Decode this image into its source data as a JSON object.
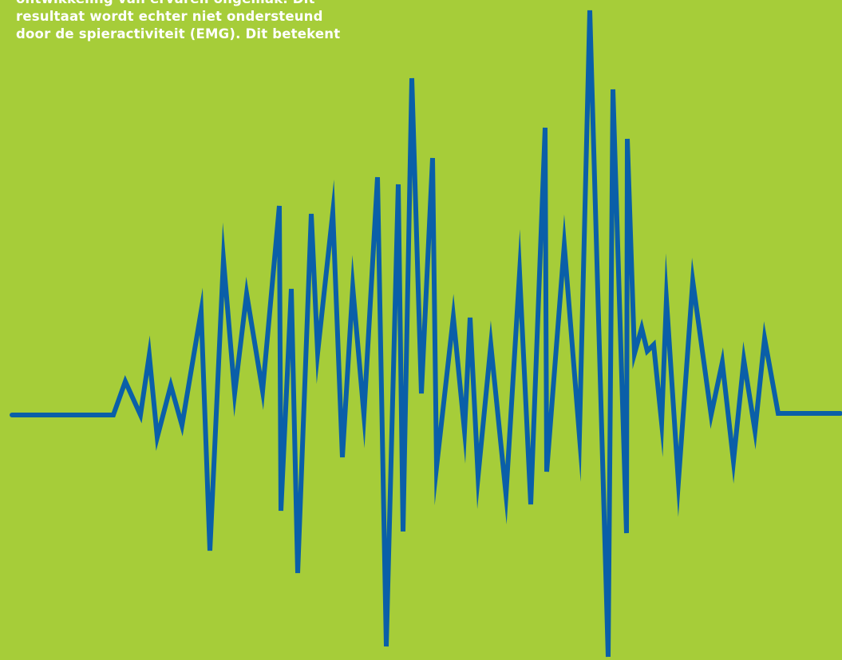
{
  "background_color": "#a6cd39",
  "wave_color": "#0a5fa8",
  "text_color": "#ffffff",
  "text_lines": [
    "ontwikkeling van ervaren ongemak. Dit",
    "resultaat wordt echter niet ondersteund",
    "door de spieractiviteit (EMG). Dit betekent"
  ]
}
